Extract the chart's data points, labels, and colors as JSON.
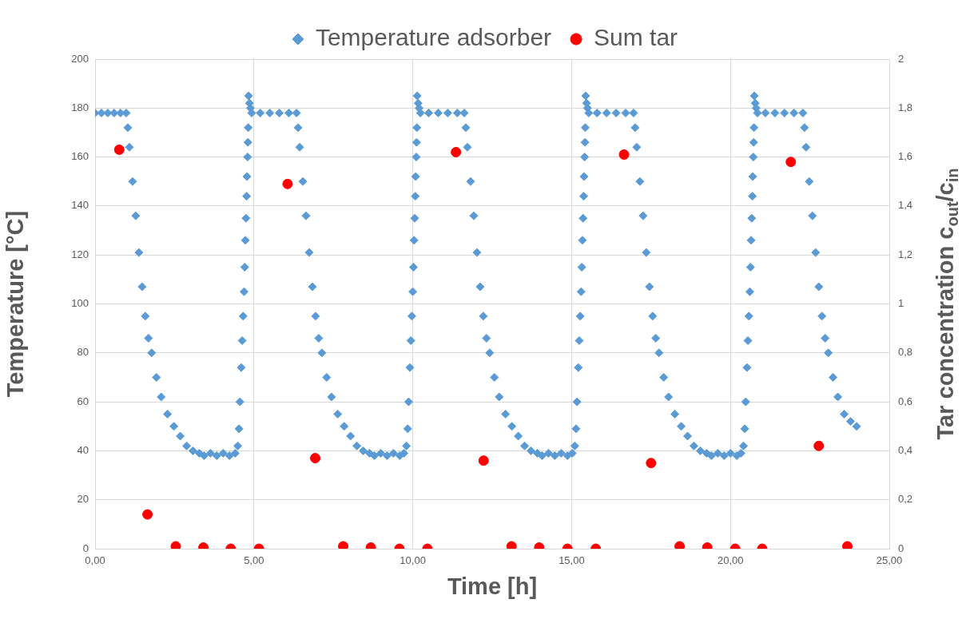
{
  "chart_data": {
    "type": "scatter",
    "xlabel": "Time [h]",
    "ylabel": "Temperature [°C]",
    "y2label": "Tar concentration c$_{out}$/c$_{in}$",
    "xlim": [
      0,
      25
    ],
    "xticks": [
      {
        "value": 0,
        "label": "0,00"
      },
      {
        "value": 5,
        "label": "5,00"
      },
      {
        "value": 10,
        "label": "10,00"
      },
      {
        "value": 15,
        "label": "15,00"
      },
      {
        "value": 20,
        "label": "20,00"
      },
      {
        "value": 25,
        "label": "25,00"
      }
    ],
    "ylim": [
      0,
      200
    ],
    "yticks": [
      0,
      20,
      40,
      60,
      80,
      100,
      120,
      140,
      160,
      180,
      200
    ],
    "y2lim": [
      0,
      2
    ],
    "y2ticks": [
      0,
      {
        "value": 0.2,
        "label": "0,2"
      },
      {
        "value": 0.4,
        "label": "0,4"
      },
      {
        "value": 0.6,
        "label": "0,6"
      },
      {
        "value": 0.8,
        "label": "0,8"
      },
      1,
      {
        "value": 1.2,
        "label": "1,2"
      },
      {
        "value": 1.4,
        "label": "1,4"
      },
      {
        "value": 1.6,
        "label": "1,6"
      },
      {
        "value": 1.8,
        "label": "1,8"
      },
      2
    ],
    "grid": true,
    "legend": "top",
    "series": [
      {
        "name": "Temperature adsorber",
        "marker": "diamond",
        "color": "#5b9bd5",
        "x": [
          0,
          0.2,
          0.4,
          0.6,
          0.8,
          0.98,
          1.03,
          1.08,
          1.18,
          1.28,
          1.38,
          1.48,
          1.58,
          1.68,
          1.78,
          1.93,
          2.08,
          2.28,
          2.48,
          2.68,
          2.88,
          3.08,
          3.28,
          3.43,
          3.63,
          3.83,
          4.03,
          4.23,
          4.41,
          4.49,
          4.53,
          4.56,
          4.6,
          4.63,
          4.66,
          4.69,
          4.71,
          4.73,
          4.75,
          4.77,
          4.78,
          4.8,
          4.81,
          4.82,
          4.83,
          4.86,
          4.89,
          4.93,
          5.2,
          5.5,
          5.8,
          6.1,
          6.34,
          6.39,
          6.44,
          6.54,
          6.64,
          6.74,
          6.84,
          6.94,
          7.04,
          7.14,
          7.29,
          7.44,
          7.64,
          7.84,
          8.04,
          8.24,
          8.44,
          8.64,
          8.79,
          8.99,
          9.19,
          9.39,
          9.59,
          9.72,
          9.8,
          9.84,
          9.87,
          9.91,
          9.94,
          9.97,
          10.0,
          10.02,
          10.04,
          10.06,
          10.08,
          10.09,
          10.11,
          10.12,
          10.13,
          10.14,
          10.17,
          10.2,
          10.24,
          10.5,
          10.8,
          11.1,
          11.4,
          11.62,
          11.67,
          11.72,
          11.82,
          11.92,
          12.02,
          12.12,
          12.22,
          12.32,
          12.42,
          12.57,
          12.72,
          12.92,
          13.12,
          13.32,
          13.52,
          13.72,
          13.92,
          14.07,
          14.27,
          14.47,
          14.67,
          14.87,
          15.02,
          15.1,
          15.14,
          15.17,
          15.21,
          15.24,
          15.27,
          15.3,
          15.32,
          15.34,
          15.36,
          15.38,
          15.39,
          15.41,
          15.42,
          15.43,
          15.44,
          15.47,
          15.5,
          15.54,
          15.8,
          16.1,
          16.4,
          16.7,
          16.95,
          17.0,
          17.05,
          17.15,
          17.25,
          17.35,
          17.45,
          17.55,
          17.65,
          17.75,
          17.9,
          18.05,
          18.25,
          18.45,
          18.65,
          18.85,
          19.05,
          19.25,
          19.4,
          19.6,
          19.8,
          20.0,
          20.2,
          20.33,
          20.41,
          20.45,
          20.48,
          20.52,
          20.55,
          20.58,
          20.61,
          20.63,
          20.65,
          20.67,
          20.69,
          20.7,
          20.72,
          20.73,
          20.74,
          20.75,
          20.78,
          20.81,
          20.85,
          21.1,
          21.4,
          21.7,
          22.0,
          22.28,
          22.33,
          22.38,
          22.48,
          22.58,
          22.68,
          22.78,
          22.88,
          22.98,
          23.08,
          23.23,
          23.38,
          23.58,
          23.78,
          23.97
        ],
        "values": [
          178,
          178,
          178,
          178,
          178,
          178,
          172,
          164,
          150,
          136,
          121,
          107,
          95,
          86,
          80,
          70,
          62,
          55,
          50,
          46,
          42,
          40,
          39,
          38,
          39,
          38,
          39,
          38,
          39,
          42,
          49,
          60,
          74,
          85,
          95,
          105,
          115,
          126,
          135,
          144,
          152,
          160,
          166,
          172,
          185,
          182,
          180,
          178,
          178,
          178,
          178,
          178,
          178,
          172,
          164,
          150,
          136,
          121,
          107,
          95,
          86,
          80,
          70,
          62,
          55,
          50,
          46,
          42,
          40,
          39,
          38,
          39,
          38,
          39,
          38,
          39,
          42,
          49,
          60,
          74,
          85,
          95,
          105,
          115,
          126,
          135,
          144,
          152,
          160,
          166,
          172,
          185,
          182,
          180,
          178,
          178,
          178,
          178,
          178,
          178,
          172,
          164,
          150,
          136,
          121,
          107,
          95,
          86,
          80,
          70,
          62,
          55,
          50,
          46,
          42,
          40,
          39,
          38,
          39,
          38,
          39,
          38,
          39,
          42,
          49,
          60,
          74,
          85,
          95,
          105,
          115,
          126,
          135,
          144,
          152,
          160,
          166,
          172,
          185,
          182,
          180,
          178,
          178,
          178,
          178,
          178,
          178,
          172,
          164,
          150,
          136,
          121,
          107,
          95,
          86,
          80,
          70,
          62,
          55,
          50,
          46,
          42,
          40,
          39,
          38,
          39,
          38,
          39,
          38,
          39,
          42,
          49,
          60,
          74,
          85,
          95,
          105,
          115,
          126,
          135,
          144,
          152,
          160,
          166,
          172,
          185,
          182,
          180,
          178,
          178,
          178,
          178,
          178,
          178,
          172,
          164,
          150,
          136,
          121,
          107,
          95,
          86,
          80,
          70,
          62,
          55,
          52,
          50
        ]
      },
      {
        "name": "Sum tar",
        "marker": "circle",
        "color": "#ff0000",
        "axis": "y2",
        "x": [
          0.76,
          1.65,
          2.54,
          3.41,
          4.27,
          5.16,
          6.06,
          6.93,
          7.81,
          8.68,
          9.58,
          10.46,
          11.36,
          12.23,
          13.11,
          13.98,
          14.87,
          15.76,
          16.65,
          17.5,
          18.4,
          19.27,
          20.15,
          21.0,
          21.9,
          22.78,
          23.68
        ],
        "values": [
          1.63,
          0.14,
          0.01,
          0.005,
          0,
          0,
          1.49,
          0.37,
          0.01,
          0.005,
          0,
          0,
          1.62,
          0.36,
          0.01,
          0.005,
          0,
          0,
          1.61,
          0.35,
          0.01,
          0.005,
          0,
          0,
          1.58,
          0.42,
          0.01
        ]
      }
    ]
  }
}
